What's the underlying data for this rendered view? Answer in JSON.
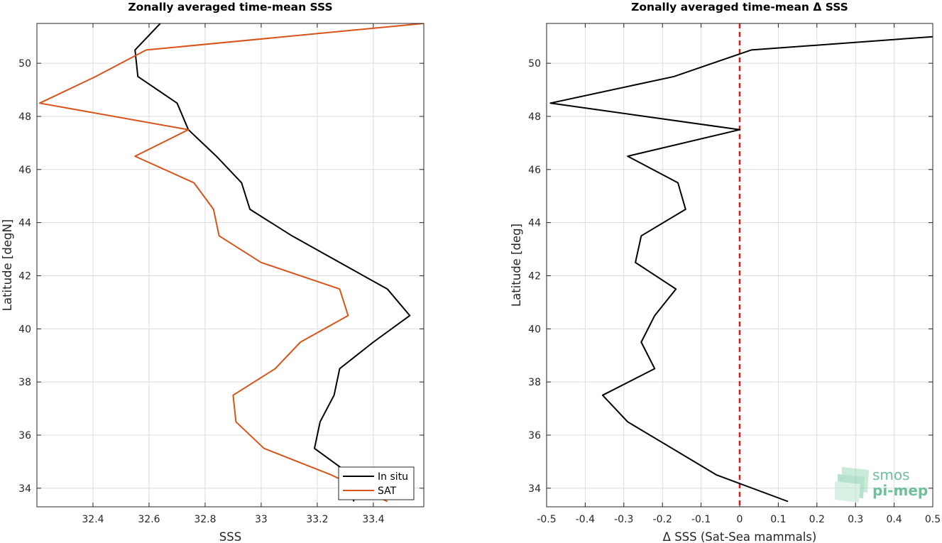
{
  "chart_data": [
    {
      "type": "line",
      "title": "Zonally averaged time-mean SSS",
      "xlabel": "SSS",
      "ylabel": "Latitude [degN]",
      "xlim": [
        32.2,
        33.58
      ],
      "ylim": [
        33.3,
        51.5
      ],
      "xticks": [
        32.4,
        32.6,
        32.8,
        33,
        33.2,
        33.4
      ],
      "xtick_labels": [
        "32.4",
        "32.6",
        "32.8",
        "33",
        "33.2",
        "33.4"
      ],
      "yticks": [
        34,
        36,
        38,
        40,
        42,
        44,
        46,
        48,
        50
      ],
      "ytick_labels": [
        "34",
        "36",
        "38",
        "40",
        "42",
        "44",
        "46",
        "48",
        "50"
      ],
      "grid": true,
      "legend": {
        "position": "bottom-right",
        "entries": [
          "In situ",
          "SAT"
        ]
      },
      "series": [
        {
          "name": "In situ",
          "color": "#000000",
          "points": [
            [
              32.64,
              51.5
            ],
            [
              32.55,
              50.5
            ],
            [
              32.56,
              49.5
            ],
            [
              32.7,
              48.5
            ],
            [
              32.74,
              47.5
            ],
            [
              32.84,
              46.5
            ],
            [
              32.93,
              45.5
            ],
            [
              32.96,
              44.5
            ],
            [
              33.11,
              43.5
            ],
            [
              33.28,
              42.5
            ],
            [
              33.45,
              41.5
            ],
            [
              33.53,
              40.5
            ],
            [
              33.4,
              39.5
            ],
            [
              33.28,
              38.5
            ],
            [
              33.26,
              37.5
            ],
            [
              33.21,
              36.5
            ],
            [
              33.19,
              35.5
            ],
            [
              33.32,
              34.5
            ],
            [
              33.33,
              33.5
            ]
          ]
        },
        {
          "name": "SAT",
          "color": "#d95319",
          "points": [
            [
              33.58,
              51.5
            ],
            [
              32.59,
              50.5
            ],
            [
              32.41,
              49.5
            ],
            [
              32.21,
              48.5
            ],
            [
              32.74,
              47.5
            ],
            [
              32.55,
              46.5
            ],
            [
              32.76,
              45.5
            ],
            [
              32.83,
              44.5
            ],
            [
              32.85,
              43.5
            ],
            [
              33.0,
              42.5
            ],
            [
              33.28,
              41.5
            ],
            [
              33.31,
              40.5
            ],
            [
              33.14,
              39.5
            ],
            [
              33.05,
              38.5
            ],
            [
              32.9,
              37.5
            ],
            [
              32.91,
              36.5
            ],
            [
              33.01,
              35.5
            ],
            [
              33.25,
              34.5
            ],
            [
              33.45,
              33.5
            ]
          ]
        }
      ]
    },
    {
      "type": "line",
      "title": "Zonally averaged time-mean Δ SSS",
      "xlabel": "Δ SSS (Sat-Sea mammals)",
      "ylabel": "Latitude [deg]",
      "xlim": [
        -0.5,
        0.5
      ],
      "ylim": [
        33.3,
        51.5
      ],
      "xticks": [
        -0.5,
        -0.4,
        -0.3,
        -0.2,
        -0.1,
        0,
        0.1,
        0.2,
        0.3,
        0.4,
        0.5
      ],
      "xtick_labels": [
        "-0.5",
        "-0.4",
        "-0.3",
        "-0.2",
        "-0.1",
        "0",
        "0.1",
        "0.2",
        "0.3",
        "0.4",
        "0.5"
      ],
      "yticks": [
        34,
        36,
        38,
        40,
        42,
        44,
        46,
        48,
        50
      ],
      "ytick_labels": [
        "34",
        "36",
        "38",
        "40",
        "42",
        "44",
        "46",
        "48",
        "50"
      ],
      "grid": true,
      "reference_line": {
        "x": 0,
        "color": "#e41a1c",
        "style": "dashed"
      },
      "series": [
        {
          "color": "#000000",
          "points": [
            [
              0.5,
              51.0
            ],
            [
              0.03,
              50.5
            ],
            [
              -0.17,
              49.5
            ],
            [
              -0.49,
              48.5
            ],
            [
              0.0,
              47.5
            ],
            [
              -0.29,
              46.5
            ],
            [
              -0.16,
              45.5
            ],
            [
              -0.14,
              44.5
            ],
            [
              -0.255,
              43.5
            ],
            [
              -0.27,
              42.5
            ],
            [
              -0.165,
              41.5
            ],
            [
              -0.22,
              40.5
            ],
            [
              -0.255,
              39.5
            ],
            [
              -0.22,
              38.5
            ],
            [
              -0.355,
              37.5
            ],
            [
              -0.29,
              36.5
            ],
            [
              -0.175,
              35.5
            ],
            [
              -0.06,
              34.5
            ],
            [
              0.125,
              33.5
            ]
          ]
        }
      ]
    }
  ],
  "logo": {
    "line1": "smos",
    "line2": "pi-mep"
  }
}
